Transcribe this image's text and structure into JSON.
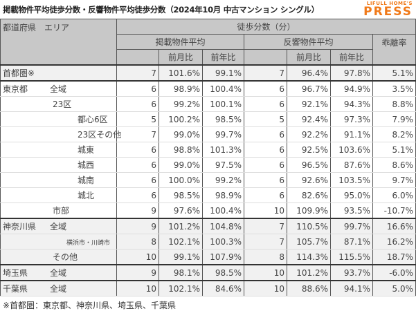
{
  "title": "掲載物件平均徒歩分数・反響物件平均徒歩分数（2024年10月 中古マンション シングル）",
  "logo": {
    "line1": "LIFULL HOME'S",
    "line2": "PRESS",
    "color": "#f07a1a"
  },
  "headers": {
    "area": "都道府県　エリア",
    "walk_minutes": "徒歩分数（分）",
    "listed_avg": "掲載物件平均",
    "inquiry_avg": "反響物件平均",
    "divergence": "乖離率",
    "mom": "前月比",
    "yoy": "前年比"
  },
  "rows": [
    {
      "pref": "首都圏※",
      "area": "",
      "indent": 0,
      "group": true,
      "gray": true,
      "listed": "7",
      "listed_mom": "101.6%",
      "listed_yoy": "99.1%",
      "inq": "7",
      "inq_mom": "96.4%",
      "inq_yoy": "97.8%",
      "div": "5.1%"
    },
    {
      "pref": "東京都",
      "area": "全域",
      "indent": 0,
      "group": true,
      "gray": false,
      "listed": "6",
      "listed_mom": "98.9%",
      "listed_yoy": "100.4%",
      "inq": "6",
      "inq_mom": "96.7%",
      "inq_yoy": "94.9%",
      "div": "3.5%"
    },
    {
      "pref": "",
      "area": "23区",
      "indent": 1,
      "group": false,
      "gray": false,
      "listed": "6",
      "listed_mom": "99.2%",
      "listed_yoy": "100.1%",
      "inq": "6",
      "inq_mom": "92.1%",
      "inq_yoy": "94.3%",
      "div": "8.8%"
    },
    {
      "pref": "",
      "area": "都心6区",
      "indent": 2,
      "group": false,
      "gray": false,
      "listed": "5",
      "listed_mom": "100.2%",
      "listed_yoy": "98.5%",
      "inq": "5",
      "inq_mom": "92.4%",
      "inq_yoy": "97.3%",
      "div": "7.9%"
    },
    {
      "pref": "",
      "area": "23区その他",
      "indent": 2,
      "group": false,
      "gray": false,
      "listed": "7",
      "listed_mom": "99.0%",
      "listed_yoy": "99.7%",
      "inq": "6",
      "inq_mom": "92.2%",
      "inq_yoy": "91.1%",
      "div": "8.2%"
    },
    {
      "pref": "",
      "area": "城東",
      "indent": 2,
      "group": false,
      "gray": false,
      "listed": "6",
      "listed_mom": "98.8%",
      "listed_yoy": "101.3%",
      "inq": "6",
      "inq_mom": "92.5%",
      "inq_yoy": "103.6%",
      "div": "5.1%"
    },
    {
      "pref": "",
      "area": "城西",
      "indent": 2,
      "group": false,
      "gray": false,
      "listed": "6",
      "listed_mom": "99.0%",
      "listed_yoy": "97.5%",
      "inq": "6",
      "inq_mom": "96.5%",
      "inq_yoy": "87.6%",
      "div": "8.6%"
    },
    {
      "pref": "",
      "area": "城南",
      "indent": 2,
      "group": false,
      "gray": false,
      "listed": "6",
      "listed_mom": "100.0%",
      "listed_yoy": "99.2%",
      "inq": "6",
      "inq_mom": "92.6%",
      "inq_yoy": "103.5%",
      "div": "9.7%"
    },
    {
      "pref": "",
      "area": "城北",
      "indent": 2,
      "group": false,
      "gray": false,
      "listed": "6",
      "listed_mom": "98.5%",
      "listed_yoy": "98.9%",
      "inq": "6",
      "inq_mom": "82.6%",
      "inq_yoy": "95.0%",
      "div": "6.0%"
    },
    {
      "pref": "",
      "area": "市部",
      "indent": 1,
      "group": false,
      "gray": false,
      "listed": "9",
      "listed_mom": "97.6%",
      "listed_yoy": "100.4%",
      "inq": "10",
      "inq_mom": "109.9%",
      "inq_yoy": "93.5%",
      "div": "-10.7%"
    },
    {
      "pref": "神奈川県",
      "area": "全域",
      "indent": 0,
      "group": true,
      "gray": true,
      "listed": "9",
      "listed_mom": "101.2%",
      "listed_yoy": "104.8%",
      "inq": "7",
      "inq_mom": "110.5%",
      "inq_yoy": "99.7%",
      "div": "16.6%"
    },
    {
      "pref": "",
      "area": "横浜市・川崎市",
      "indent": 3,
      "group": false,
      "gray": true,
      "listed": "8",
      "listed_mom": "102.1%",
      "listed_yoy": "100.3%",
      "inq": "7",
      "inq_mom": "105.7%",
      "inq_yoy": "87.1%",
      "div": "16.2%"
    },
    {
      "pref": "",
      "area": "その他",
      "indent": 1,
      "group": false,
      "gray": true,
      "listed": "10",
      "listed_mom": "99.1%",
      "listed_yoy": "107.9%",
      "inq": "8",
      "inq_mom": "114.3%",
      "inq_yoy": "115.5%",
      "div": "18.7%"
    },
    {
      "pref": "埼玉県",
      "area": "全域",
      "indent": 0,
      "group": true,
      "gray": true,
      "listed": "9",
      "listed_mom": "98.1%",
      "listed_yoy": "98.5%",
      "inq": "10",
      "inq_mom": "101.2%",
      "inq_yoy": "93.7%",
      "div": "-6.0%"
    },
    {
      "pref": "千葉県",
      "area": "全域",
      "indent": 0,
      "group": true,
      "gray": true,
      "listed": "10",
      "listed_mom": "102.1%",
      "listed_yoy": "84.6%",
      "inq": "10",
      "inq_mom": "88.6%",
      "inq_yoy": "94.1%",
      "div": "5.0%"
    }
  ],
  "footnote": "※首都圏：東京都、神奈川県、埼玉県、千葉県"
}
